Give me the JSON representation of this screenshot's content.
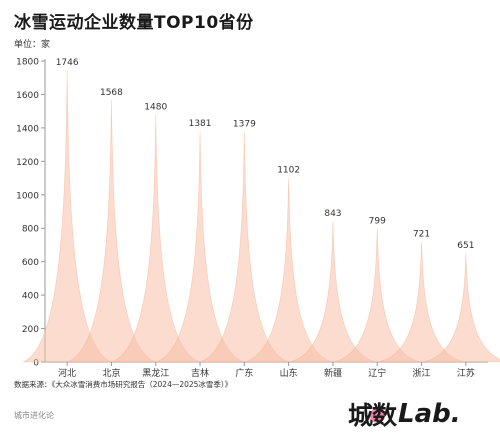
{
  "title": "冰雪运动企业数量TOP10省份",
  "unit_label": "单位：家",
  "source": "数据来源：《大众冰雪消费市场研究报告（2024—2025冰雪季）》",
  "watermark": "城市进化论",
  "logo": {
    "cn": "城数",
    "en": "Lab."
  },
  "colors": {
    "fill": "#f7c0a8",
    "edge": "#f4a886",
    "text": "#333333",
    "axis": "#999999"
  },
  "chart_data": {
    "type": "bar",
    "categories": [
      "河北",
      "北京",
      "黑龙江",
      "吉林",
      "广东",
      "山东",
      "新疆",
      "辽宁",
      "浙江",
      "江苏"
    ],
    "values": [
      1746,
      1568,
      1480,
      1381,
      1379,
      1102,
      843,
      799,
      721,
      651
    ],
    "title": "冰雪运动企业数量TOP10省份",
    "xlabel": "",
    "ylabel": "单位：家",
    "ylim": [
      0,
      1800
    ],
    "yticks": [
      0,
      200,
      400,
      600,
      800,
      1000,
      1200,
      1400,
      1600,
      1800
    ],
    "grid": false,
    "legend": "none"
  }
}
